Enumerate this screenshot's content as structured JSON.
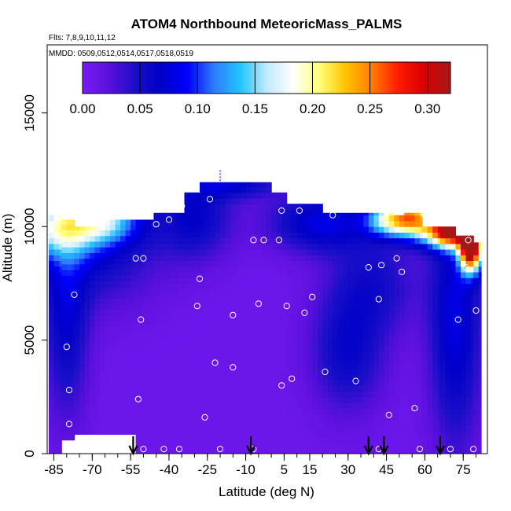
{
  "chart_data": {
    "type": "heatmap",
    "title": "ATOM4 Northbound MeteoricMass_PALMS",
    "subtitle_flights": "Flts: 7,8,9,10,11,12",
    "subtitle_dates": "MMDD: 0509,0512,0514,0517,0518,0519",
    "xlabel": "Latitude (deg N)",
    "ylabel": "Altitude (m)",
    "xlim": [
      -87,
      82
    ],
    "ylim": [
      0,
      18000
    ],
    "x_ticks": [
      -85,
      -70,
      -55,
      -40,
      -25,
      -10,
      5,
      15,
      30,
      45,
      60,
      75
    ],
    "x_tick_labels": [
      "-85",
      "-70",
      "-55",
      "-40",
      "-25",
      "-10",
      "5",
      "15",
      "30",
      "45",
      "60",
      "75"
    ],
    "y_ticks": [
      0,
      5000,
      10000,
      15000
    ],
    "y_tick_labels": [
      "0",
      "5000",
      "10000",
      "15000"
    ],
    "colorbar": {
      "range": [
        0,
        0.32
      ],
      "ticks": [
        0,
        0.05,
        0.1,
        0.15,
        0.2,
        0.25,
        0.3
      ],
      "tick_labels": [
        "0.00",
        "0.05",
        "0.10",
        "0.15",
        "0.20",
        "0.25",
        "0.30"
      ],
      "colors": [
        "#7a1cf5",
        "#5a10dd",
        "#1a0fc8",
        "#0000c8",
        "#0000ff",
        "#2e7bff",
        "#21c4ff",
        "#bfe9ff",
        "#ffffff",
        "#ffff7a",
        "#ffc400",
        "#ff7d00",
        "#ff1c00",
        "#d80000",
        "#a51818"
      ]
    },
    "field": {
      "background_value": 0.01,
      "features": [
        {
          "lat": -84,
          "alt": 10000,
          "sigma_lat": 12,
          "sigma_alt": 900,
          "value": 0.12
        },
        {
          "lat": -70,
          "alt": 9200,
          "sigma_lat": 18,
          "sigma_alt": 1800,
          "value": 0.05
        },
        {
          "lat": -65,
          "alt": 10300,
          "sigma_lat": 10,
          "sigma_alt": 700,
          "value": 0.1
        },
        {
          "lat": -80,
          "alt": 6000,
          "sigma_lat": 6,
          "sigma_alt": 3000,
          "value": 0.055
        },
        {
          "lat": -30,
          "alt": 10500,
          "sigma_lat": 10,
          "sigma_alt": 1300,
          "value": 0.055
        },
        {
          "lat": -15,
          "alt": 11900,
          "sigma_lat": 12,
          "sigma_alt": 450,
          "value": 0.055
        },
        {
          "lat": 20,
          "alt": 10200,
          "sigma_lat": 14,
          "sigma_alt": 900,
          "value": 0.07
        },
        {
          "lat": 45,
          "alt": 10300,
          "sigma_lat": 6,
          "sigma_alt": 500,
          "value": 0.12
        },
        {
          "lat": 55,
          "alt": 10400,
          "sigma_lat": 6,
          "sigma_alt": 600,
          "value": 0.2
        },
        {
          "lat": 70,
          "alt": 9800,
          "sigma_lat": 7,
          "sigma_alt": 500,
          "value": 0.28
        },
        {
          "lat": 78,
          "alt": 9000,
          "sigma_lat": 3,
          "sigma_alt": 700,
          "value": 0.3
        },
        {
          "lat": 72,
          "alt": 6000,
          "sigma_lat": 7,
          "sigma_alt": 3800,
          "value": 0.07
        },
        {
          "lat": 30,
          "alt": 4500,
          "sigma_lat": 10,
          "sigma_alt": 1800,
          "value": 0.05
        },
        {
          "lat": 40,
          "alt": 7500,
          "sigma_lat": 12,
          "sigma_alt": 1500,
          "value": 0.04
        }
      ]
    },
    "coverage": [
      [
        -87,
        -82,
        0,
        10500
      ],
      [
        -82,
        -77,
        600,
        10300
      ],
      [
        -77,
        -65,
        850,
        10000
      ],
      [
        -65,
        -53,
        850,
        10300
      ],
      [
        -53,
        -46,
        0,
        10300
      ],
      [
        -46,
        -34,
        0,
        10600
      ],
      [
        -34,
        -28,
        0,
        11500
      ],
      [
        -28,
        -8,
        0,
        11950
      ],
      [
        -8,
        0,
        0,
        11950
      ],
      [
        0,
        6,
        0,
        11500
      ],
      [
        6,
        20,
        0,
        11000
      ],
      [
        20,
        28,
        0,
        10600
      ],
      [
        28,
        48,
        0,
        10600
      ],
      [
        48,
        52,
        0,
        10500
      ],
      [
        52,
        59,
        0,
        10600
      ],
      [
        59,
        66,
        0,
        10000
      ],
      [
        66,
        72,
        0,
        10000
      ],
      [
        72,
        76,
        0,
        9600
      ],
      [
        76,
        79,
        0,
        9600
      ],
      [
        79,
        82,
        0,
        9300
      ]
    ],
    "samples": [
      {
        "lat": -85,
        "alt": 10100
      },
      {
        "lat": -80,
        "alt": 9300
      },
      {
        "lat": -73,
        "alt": 10600
      },
      {
        "lat": -77,
        "alt": 7000
      },
      {
        "lat": -80,
        "alt": 4700
      },
      {
        "lat": -79,
        "alt": 2800
      },
      {
        "lat": -79,
        "alt": 1300
      },
      {
        "lat": -53,
        "alt": 8600
      },
      {
        "lat": -50,
        "alt": 8600
      },
      {
        "lat": -51,
        "alt": 5900
      },
      {
        "lat": -52,
        "alt": 2400
      },
      {
        "lat": -45,
        "alt": 10100
      },
      {
        "lat": -40,
        "alt": 10300
      },
      {
        "lat": -35,
        "alt": 10900
      },
      {
        "lat": -29,
        "alt": 6500
      },
      {
        "lat": -28,
        "alt": 7700
      },
      {
        "lat": -26,
        "alt": 1600
      },
      {
        "lat": -22,
        "alt": 4000
      },
      {
        "lat": -24,
        "alt": 11200
      },
      {
        "lat": -15,
        "alt": 6100
      },
      {
        "lat": -15,
        "alt": 3800
      },
      {
        "lat": -7,
        "alt": 9400
      },
      {
        "lat": -3,
        "alt": 9400
      },
      {
        "lat": -5,
        "alt": 6600
      },
      {
        "lat": 3,
        "alt": 9400
      },
      {
        "lat": 4,
        "alt": 10700
      },
      {
        "lat": 6,
        "alt": 6500
      },
      {
        "lat": 4,
        "alt": 3000
      },
      {
        "lat": 8,
        "alt": 3300
      },
      {
        "lat": 11,
        "alt": 10700
      },
      {
        "lat": 13,
        "alt": 6200
      },
      {
        "lat": 16,
        "alt": 6900
      },
      {
        "lat": 21,
        "alt": 3600
      },
      {
        "lat": 24,
        "alt": 10500
      },
      {
        "lat": 33,
        "alt": 3200
      },
      {
        "lat": 38,
        "alt": 8200
      },
      {
        "lat": 43,
        "alt": 8300
      },
      {
        "lat": 42,
        "alt": 6800
      },
      {
        "lat": 49,
        "alt": 8600
      },
      {
        "lat": 51,
        "alt": 8000
      },
      {
        "lat": 46,
        "alt": 1700
      },
      {
        "lat": 56,
        "alt": 2000
      },
      {
        "lat": 60,
        "alt": 10500
      },
      {
        "lat": 73,
        "alt": 5900
      },
      {
        "lat": 76,
        "alt": 8200
      },
      {
        "lat": 77,
        "alt": 9400
      },
      {
        "lat": 80,
        "alt": 6300
      },
      {
        "lat": 58,
        "alt": 200
      },
      {
        "lat": 70,
        "alt": 200
      },
      {
        "lat": 79,
        "alt": 200
      },
      {
        "lat": -50,
        "alt": 200
      },
      {
        "lat": -42,
        "alt": 200
      },
      {
        "lat": -36,
        "alt": 200
      },
      {
        "lat": -20,
        "alt": 200
      },
      {
        "lat": -7,
        "alt": 200
      },
      {
        "lat": 42,
        "alt": 200
      }
    ],
    "profile_markers": [
      {
        "lat": -54
      },
      {
        "lat": -8
      },
      {
        "lat": 38
      },
      {
        "lat": 44
      },
      {
        "lat": 66
      }
    ]
  }
}
